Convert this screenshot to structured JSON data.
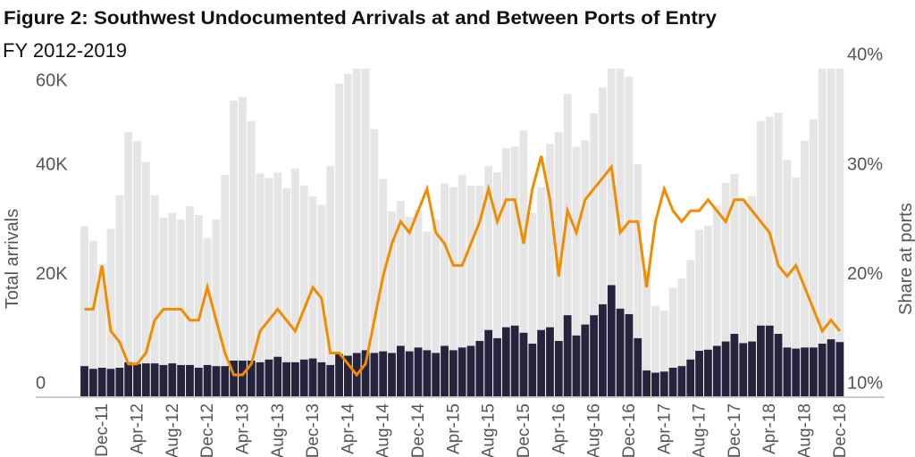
{
  "title": "Figure 2: Southwest Undocumented Arrivals at and Between Ports of Entry",
  "subtitle": "FY 2012-2019",
  "chart_data": {
    "type": "bar",
    "stacked_overlay": true,
    "left_axis": {
      "label": "Total arrivals",
      "ticks": [
        "0",
        "20K",
        "40K",
        "60K"
      ],
      "tick_values": [
        0,
        20,
        40,
        60
      ],
      "range": [
        0,
        60
      ],
      "unit": "thousands"
    },
    "right_axis": {
      "label": "Share at ports",
      "ticks": [
        "10%",
        "20%",
        "30%",
        "40%"
      ],
      "tick_values": [
        10,
        20,
        30,
        40
      ],
      "range": [
        10,
        40
      ],
      "unit": "percent"
    },
    "x_tick_labels": [
      "Dec-11",
      "Apr-12",
      "Aug-12",
      "Dec-12",
      "Apr-13",
      "Aug-13",
      "Dec-13",
      "Apr-14",
      "Aug-14",
      "Dec-14",
      "Apr-15",
      "Aug-15",
      "Dec-15",
      "Apr-16",
      "Aug-16",
      "Dec-16",
      "Apr-17",
      "Aug-17",
      "Dec-17",
      "Apr-18",
      "Aug-18",
      "Dec-18"
    ],
    "months": [
      "Oct-11",
      "Nov-11",
      "Dec-11",
      "Jan-12",
      "Feb-12",
      "Mar-12",
      "Apr-12",
      "May-12",
      "Jun-12",
      "Jul-12",
      "Aug-12",
      "Sep-12",
      "Oct-12",
      "Nov-12",
      "Dec-12",
      "Jan-13",
      "Feb-13",
      "Mar-13",
      "Apr-13",
      "May-13",
      "Jun-13",
      "Jul-13",
      "Aug-13",
      "Sep-13",
      "Oct-13",
      "Nov-13",
      "Dec-13",
      "Jan-14",
      "Feb-14",
      "Mar-14",
      "Apr-14",
      "May-14",
      "Jun-14",
      "Jul-14",
      "Aug-14",
      "Sep-14",
      "Oct-14",
      "Nov-14",
      "Dec-14",
      "Jan-15",
      "Feb-15",
      "Mar-15",
      "Apr-15",
      "May-15",
      "Jun-15",
      "Jul-15",
      "Aug-15",
      "Sep-15",
      "Oct-15",
      "Nov-15",
      "Dec-15",
      "Jan-16",
      "Feb-16",
      "Mar-16",
      "Apr-16",
      "May-16",
      "Jun-16",
      "Jul-16",
      "Aug-16",
      "Sep-16",
      "Oct-16",
      "Nov-16",
      "Dec-16",
      "Jan-17",
      "Feb-17",
      "Mar-17",
      "Apr-17",
      "May-17",
      "Jun-17",
      "Jul-17",
      "Aug-17",
      "Sep-17",
      "Oct-17",
      "Nov-17",
      "Dec-17",
      "Jan-18",
      "Feb-18",
      "Mar-18",
      "Apr-18",
      "May-18",
      "Jun-18",
      "Jul-18",
      "Aug-18",
      "Sep-18",
      "Oct-18",
      "Nov-18",
      "Dec-18"
    ],
    "series": [
      {
        "kind": "bar",
        "axis": "left",
        "color": "#e5e5e5",
        "values": [
          31.2,
          28.5,
          24.3,
          30.7,
          36.8,
          48.4,
          46.7,
          42.9,
          36.8,
          32.7,
          33.6,
          32.4,
          34.8,
          33.2,
          29.0,
          32.4,
          40.5,
          54.1,
          54.8,
          50.4,
          40.8,
          40.0,
          41.0,
          38.1,
          41.7,
          38.6,
          36.6,
          35.1,
          42.2,
          57.2,
          59.0,
          60,
          60,
          48.9,
          39.8,
          33.9,
          35.8,
          32.9,
          34.2,
          30.2,
          32.4,
          39.0,
          38.3,
          40.5,
          38.6,
          38.6,
          42.2,
          41.0,
          45.4,
          45.7,
          48.7,
          33.6,
          38.3,
          46.2,
          48.4,
          55.3,
          45.7,
          46.9,
          51.8,
          56.5,
          60,
          60,
          58.5,
          42.5,
          23.5,
          16.6,
          15.7,
          19.9,
          21.6,
          25.0,
          30.5,
          31.3,
          34.9,
          39.1,
          40.7,
          36.2,
          36.7,
          50.4,
          51.2,
          51.9,
          43.3,
          40.1,
          46.8,
          50.7,
          60,
          60,
          60
        ]
      },
      {
        "kind": "bar",
        "axis": "left",
        "color": "#28233d",
        "values": [
          5.6,
          5.1,
          5.3,
          5.1,
          5.3,
          6.3,
          6.0,
          6.1,
          6.1,
          5.8,
          6.1,
          5.8,
          5.8,
          5.3,
          5.8,
          5.6,
          5.6,
          6.6,
          6.6,
          6.6,
          6.3,
          6.8,
          7.3,
          6.3,
          6.3,
          6.8,
          7.0,
          6.3,
          5.8,
          7.8,
          7.5,
          8.0,
          8.5,
          8.0,
          8.3,
          8.0,
          9.3,
          8.3,
          9.0,
          8.5,
          8.0,
          9.3,
          8.5,
          9.0,
          9.3,
          10.2,
          12.2,
          10.7,
          12.7,
          13.0,
          11.7,
          9.7,
          12.2,
          12.7,
          10.2,
          14.9,
          11.2,
          13.2,
          14.9,
          16.9,
          20.4,
          16.1,
          15.1,
          10.7,
          4.8,
          4.4,
          4.6,
          5.3,
          5.6,
          6.8,
          8.4,
          8.6,
          9.3,
          10.1,
          11.5,
          9.8,
          10.1,
          13.0,
          13.0,
          11.5,
          9.0,
          8.8,
          9.0,
          9.0,
          9.7,
          10.5,
          10.0
        ]
      },
      {
        "kind": "line",
        "axis": "right",
        "color": "#f08c00",
        "values": [
          18,
          18,
          22,
          16,
          15,
          13,
          13,
          14,
          17,
          18,
          18,
          18,
          17,
          17,
          20,
          17,
          14,
          12,
          12,
          13,
          16,
          17,
          18,
          17,
          16,
          18,
          20,
          19,
          14,
          14,
          13,
          12,
          13,
          17,
          21,
          24,
          26,
          25,
          27,
          29,
          25,
          24,
          22,
          22,
          24,
          26,
          29,
          26,
          28,
          28,
          24,
          29,
          32,
          28,
          21,
          27,
          25,
          28,
          29,
          30,
          31,
          25,
          26,
          26,
          20,
          26,
          29,
          27,
          26,
          27,
          27,
          28,
          27,
          26,
          28,
          28,
          27,
          26,
          25,
          22,
          21,
          22,
          20,
          18,
          16,
          17,
          16
        ]
      }
    ],
    "grid": false
  }
}
